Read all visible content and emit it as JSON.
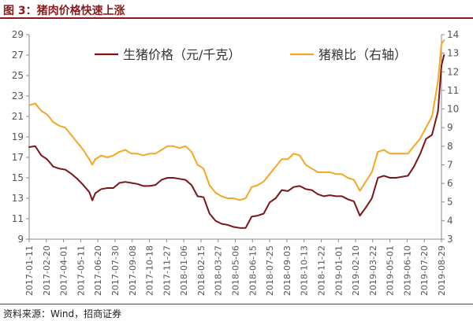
{
  "figure": {
    "title": "图 3：猪肉价格快速上涨",
    "source": "资料来源：Wind，招商证券"
  },
  "colors": {
    "title": "#8b1a1a",
    "left_series": "#7a1518",
    "right_series": "#f5a623",
    "axis": "#888888",
    "tick_text": "#555555"
  },
  "chart_data": {
    "type": "line",
    "title": "",
    "grid": false,
    "legend_position": "top",
    "x_tick_labels": [
      "2017-01-11",
      "2017-02-20",
      "2017-04-01",
      "2017-05-11",
      "2017-06-20",
      "2017-07-30",
      "2017-09-08",
      "2017-10-18",
      "2017-11-27",
      "2018-01-06",
      "2018-02-15",
      "2018-03-27",
      "2018-05-06",
      "2018-06-15",
      "2018-07-25",
      "2018-09-03",
      "2018-10-13",
      "2018-11-22",
      "2019-01-01",
      "2019-02-10",
      "2019-03-22",
      "2019-05-01",
      "2019-06-10",
      "2019-07-20",
      "2019-08-29"
    ],
    "y_left": {
      "label": "",
      "ylim": [
        9,
        29
      ],
      "ticks": [
        9,
        11,
        13,
        15,
        17,
        19,
        21,
        23,
        25,
        27,
        29
      ]
    },
    "y_right": {
      "label": "",
      "ylim": [
        3,
        14
      ],
      "ticks": [
        3,
        4,
        5,
        6,
        7,
        8,
        9,
        10,
        11,
        12,
        13,
        14
      ]
    },
    "series": [
      {
        "name": "生猪价格（元/千克）",
        "axis": "left",
        "x": [
          "2017-01-11",
          "2017-01-25",
          "2017-02-08",
          "2017-02-22",
          "2017-03-08",
          "2017-03-22",
          "2017-04-05",
          "2017-04-19",
          "2017-05-03",
          "2017-05-17",
          "2017-05-31",
          "2017-06-07",
          "2017-06-14",
          "2017-06-28",
          "2017-07-12",
          "2017-07-26",
          "2017-08-09",
          "2017-08-23",
          "2017-09-06",
          "2017-09-20",
          "2017-10-04",
          "2017-10-18",
          "2017-11-01",
          "2017-11-15",
          "2017-11-29",
          "2017-12-13",
          "2017-12-27",
          "2018-01-10",
          "2018-01-24",
          "2018-02-07",
          "2018-02-21",
          "2018-03-07",
          "2018-03-21",
          "2018-04-04",
          "2018-04-18",
          "2018-05-02",
          "2018-05-16",
          "2018-05-30",
          "2018-06-13",
          "2018-06-27",
          "2018-07-11",
          "2018-07-25",
          "2018-08-08",
          "2018-08-22",
          "2018-09-05",
          "2018-09-19",
          "2018-10-03",
          "2018-10-17",
          "2018-10-31",
          "2018-11-14",
          "2018-11-28",
          "2018-12-12",
          "2018-12-26",
          "2019-01-09",
          "2019-01-23",
          "2019-02-06",
          "2019-02-20",
          "2019-03-06",
          "2019-03-20",
          "2019-04-03",
          "2019-04-17",
          "2019-05-01",
          "2019-05-15",
          "2019-05-29",
          "2019-06-12",
          "2019-06-26",
          "2019-07-10",
          "2019-07-24",
          "2019-08-07",
          "2019-08-21",
          "2019-08-29",
          "2019-09-04"
        ],
        "values": [
          18.0,
          18.1,
          17.2,
          16.8,
          16.1,
          15.9,
          15.8,
          15.4,
          14.9,
          14.3,
          13.6,
          12.8,
          13.5,
          13.9,
          14.0,
          14.0,
          14.5,
          14.6,
          14.5,
          14.4,
          14.2,
          14.2,
          14.3,
          14.8,
          15.0,
          15.0,
          14.9,
          14.8,
          14.3,
          13.2,
          13.1,
          11.5,
          10.8,
          10.5,
          10.4,
          10.2,
          10.1,
          10.1,
          11.2,
          11.3,
          11.5,
          12.6,
          13.0,
          13.8,
          13.7,
          14.1,
          14.2,
          13.9,
          13.8,
          13.4,
          13.2,
          13.3,
          13.2,
          13.2,
          12.9,
          12.7,
          11.3,
          12.1,
          13.0,
          15.0,
          15.2,
          15.0,
          15.0,
          15.1,
          15.2,
          16.1,
          17.3,
          18.8,
          19.2,
          21.5,
          26.0,
          27.0
        ]
      },
      {
        "name": "猪粮比（右轴）",
        "axis": "right",
        "x": [
          "2017-01-11",
          "2017-01-25",
          "2017-02-08",
          "2017-02-22",
          "2017-03-08",
          "2017-03-22",
          "2017-04-05",
          "2017-04-19",
          "2017-05-03",
          "2017-05-17",
          "2017-05-31",
          "2017-06-07",
          "2017-06-14",
          "2017-06-28",
          "2017-07-12",
          "2017-07-26",
          "2017-08-09",
          "2017-08-23",
          "2017-09-06",
          "2017-09-20",
          "2017-10-04",
          "2017-10-18",
          "2017-11-01",
          "2017-11-15",
          "2017-11-29",
          "2017-12-13",
          "2017-12-27",
          "2018-01-10",
          "2018-01-24",
          "2018-02-07",
          "2018-02-21",
          "2018-03-07",
          "2018-03-21",
          "2018-04-04",
          "2018-04-18",
          "2018-05-02",
          "2018-05-16",
          "2018-05-30",
          "2018-06-13",
          "2018-06-27",
          "2018-07-11",
          "2018-07-25",
          "2018-08-08",
          "2018-08-22",
          "2018-09-05",
          "2018-09-19",
          "2018-10-03",
          "2018-10-17",
          "2018-10-31",
          "2018-11-14",
          "2018-11-28",
          "2018-12-12",
          "2018-12-26",
          "2019-01-09",
          "2019-01-23",
          "2019-02-06",
          "2019-02-20",
          "2019-03-06",
          "2019-03-20",
          "2019-04-03",
          "2019-04-17",
          "2019-05-01",
          "2019-05-15",
          "2019-05-29",
          "2019-06-12",
          "2019-06-26",
          "2019-07-10",
          "2019-07-24",
          "2019-08-07",
          "2019-08-21",
          "2019-08-29",
          "2019-09-04"
        ],
        "values": [
          10.2,
          10.3,
          9.9,
          9.7,
          9.3,
          9.1,
          9.0,
          8.6,
          8.2,
          7.8,
          7.3,
          7.0,
          7.3,
          7.5,
          7.4,
          7.5,
          7.7,
          7.8,
          7.6,
          7.6,
          7.5,
          7.6,
          7.6,
          7.8,
          8.0,
          8.0,
          7.9,
          8.0,
          7.7,
          7.0,
          6.8,
          5.9,
          5.5,
          5.3,
          5.2,
          5.2,
          5.1,
          5.2,
          5.8,
          5.9,
          6.1,
          6.5,
          6.9,
          7.3,
          7.3,
          7.6,
          7.5,
          7.0,
          6.8,
          6.6,
          6.6,
          6.6,
          6.5,
          6.5,
          6.3,
          6.2,
          5.6,
          6.1,
          6.6,
          7.7,
          7.8,
          7.6,
          7.6,
          7.6,
          7.6,
          8.0,
          8.4,
          9.0,
          9.6,
          11.5,
          13.5,
          13.7
        ]
      }
    ]
  }
}
